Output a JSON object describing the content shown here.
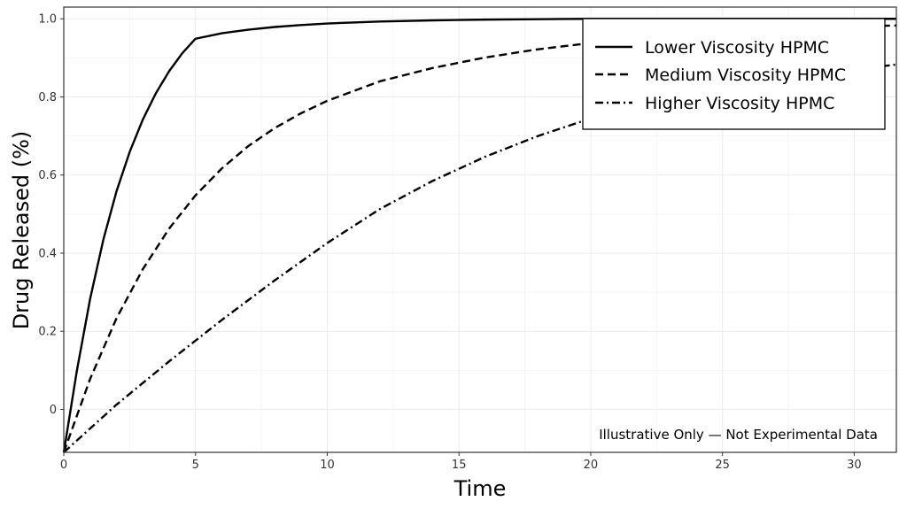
{
  "chart_data": {
    "type": "line",
    "xlabel": "Time",
    "ylabel": "Drug Released (%)",
    "xlim": [
      0,
      31.6
    ],
    "ylim": [
      -0.11,
      1.03
    ],
    "xticks": [
      0,
      5,
      10,
      15,
      20,
      25,
      30
    ],
    "yticks": [
      0,
      0.2,
      0.4,
      0.6,
      0.8,
      1.0
    ],
    "ytick_labels": [
      "0",
      "0.2",
      "0.4",
      "0.6",
      "0.8",
      "1.0"
    ],
    "grid": true,
    "legend_position": "top-right",
    "annotation": "Illustrative Only — Not Experimental Data",
    "series": [
      {
        "name": "Lower Viscosity HPMC",
        "dash": "solid",
        "x": [
          0,
          0.5,
          1,
          1.5,
          2,
          2.5,
          3,
          3.5,
          4,
          4.5,
          5,
          6,
          7,
          8,
          9,
          10,
          12,
          14,
          16,
          18,
          20,
          22,
          24,
          26,
          28,
          30,
          31.6
        ],
        "y": [
          -0.11,
          0.1,
          0.283,
          0.434,
          0.558,
          0.659,
          0.742,
          0.81,
          0.866,
          0.912,
          0.949,
          0.963,
          0.972,
          0.979,
          0.984,
          0.988,
          0.993,
          0.996,
          0.998,
          0.999,
          1.0,
          1.0,
          1.0,
          1.0,
          1.0,
          1.0,
          1.0
        ]
      },
      {
        "name": "Medium Viscosity HPMC",
        "dash": "dashed",
        "x": [
          0,
          1,
          2,
          3,
          4,
          5,
          6,
          7,
          8,
          9,
          10,
          12,
          14,
          16,
          18,
          20,
          22,
          24,
          26,
          28,
          30,
          31.6
        ],
        "y": [
          -0.11,
          0.078,
          0.233,
          0.359,
          0.463,
          0.548,
          0.617,
          0.674,
          0.72,
          0.758,
          0.79,
          0.84,
          0.874,
          0.901,
          0.922,
          0.938,
          0.95,
          0.96,
          0.968,
          0.975,
          0.98,
          0.983
        ]
      },
      {
        "name": "Higher Viscosity HPMC",
        "dash": "dashdot",
        "x": [
          0,
          2,
          4,
          6,
          8,
          10,
          12,
          14,
          16,
          18,
          20,
          22,
          24,
          26,
          28,
          30,
          31.6
        ],
        "y": [
          -0.11,
          0.012,
          0.123,
          0.229,
          0.33,
          0.426,
          0.513,
          0.585,
          0.647,
          0.7,
          0.745,
          0.78,
          0.808,
          0.832,
          0.853,
          0.87,
          0.883
        ]
      }
    ]
  }
}
